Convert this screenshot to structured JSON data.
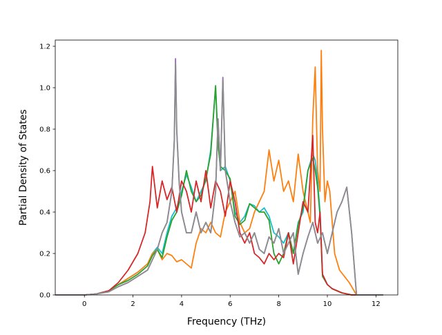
{
  "chart_data": {
    "type": "line",
    "title": "",
    "xlabel": "Frequency (THz)",
    "ylabel": "Partial Density of States",
    "xlim": [
      -1.2,
      12.9
    ],
    "ylim": [
      0,
      1.23
    ],
    "xticks": [
      0,
      2,
      4,
      6,
      8,
      10,
      12
    ],
    "yticks": [
      0.0,
      0.2,
      0.4,
      0.6,
      0.8,
      1.0,
      1.2
    ],
    "xtick_labels": [
      "0",
      "2",
      "4",
      "6",
      "8",
      "10",
      "12"
    ],
    "ytick_labels": [
      "0.0",
      "0.2",
      "0.4",
      "0.6",
      "0.8",
      "1.0",
      "1.2"
    ],
    "grid": false,
    "legend": "none",
    "series": [
      {
        "color": "#17becf",
        "x": [
          -1.2,
          0,
          0.5,
          1.0,
          1.4,
          1.8,
          2.2,
          2.6,
          2.8,
          3.0,
          3.2,
          3.4,
          3.6,
          3.8,
          4.0,
          4.2,
          4.4,
          4.6,
          4.8,
          5.0,
          5.2,
          5.4,
          5.5,
          5.6,
          5.8,
          6.0,
          6.2,
          6.4,
          6.6,
          6.8,
          7.0,
          7.2,
          7.4,
          7.6,
          7.8,
          8.0,
          8.2,
          8.4,
          8.6,
          8.8,
          9.0,
          9.2,
          9.4,
          9.5,
          9.6,
          9.7,
          9.8,
          10.0,
          10.2,
          10.4,
          10.6,
          10.8,
          11.0,
          11.2,
          12.3
        ],
        "y": [
          0,
          0,
          0.005,
          0.02,
          0.05,
          0.08,
          0.11,
          0.15,
          0.2,
          0.23,
          0.2,
          0.3,
          0.38,
          0.42,
          0.5,
          0.58,
          0.52,
          0.45,
          0.5,
          0.55,
          0.7,
          1.0,
          0.75,
          0.6,
          0.62,
          0.55,
          0.4,
          0.35,
          0.38,
          0.44,
          0.43,
          0.4,
          0.42,
          0.38,
          0.3,
          0.28,
          0.25,
          0.3,
          0.2,
          0.35,
          0.4,
          0.6,
          0.68,
          0.65,
          0.55,
          0.4,
          0.1,
          0.05,
          0.03,
          0.02,
          0.01,
          0.005,
          0,
          0,
          0
        ]
      },
      {
        "color": "#ff7f0e",
        "x": [
          -1.2,
          0,
          0.5,
          1.0,
          1.4,
          1.8,
          2.2,
          2.6,
          2.8,
          3.0,
          3.2,
          3.4,
          3.6,
          3.8,
          4.0,
          4.2,
          4.4,
          4.6,
          4.8,
          5.0,
          5.2,
          5.4,
          5.6,
          5.8,
          6.0,
          6.2,
          6.4,
          6.6,
          6.8,
          7.0,
          7.2,
          7.4,
          7.6,
          7.8,
          8.0,
          8.2,
          8.4,
          8.6,
          8.8,
          9.0,
          9.2,
          9.3,
          9.4,
          9.5,
          9.6,
          9.7,
          9.75,
          9.8,
          9.9,
          10.0,
          10.1,
          10.3,
          10.5,
          10.7,
          10.9,
          11.1,
          11.2,
          12.3
        ],
        "y": [
          0,
          0,
          0.005,
          0.02,
          0.05,
          0.08,
          0.11,
          0.15,
          0.2,
          0.22,
          0.17,
          0.2,
          0.19,
          0.16,
          0.17,
          0.15,
          0.13,
          0.25,
          0.32,
          0.3,
          0.35,
          0.3,
          0.28,
          0.4,
          0.45,
          0.5,
          0.35,
          0.3,
          0.32,
          0.4,
          0.45,
          0.5,
          0.7,
          0.55,
          0.65,
          0.5,
          0.55,
          0.45,
          0.68,
          0.5,
          0.4,
          0.35,
          0.85,
          1.1,
          0.6,
          0.5,
          1.18,
          0.8,
          0.45,
          0.55,
          0.5,
          0.2,
          0.12,
          0.09,
          0.06,
          0.02,
          0,
          0
        ]
      },
      {
        "color": "#2ca02c",
        "x": [
          -1.2,
          0,
          0.5,
          1.0,
          1.4,
          1.8,
          2.2,
          2.6,
          2.8,
          3.0,
          3.2,
          3.4,
          3.6,
          3.8,
          4.0,
          4.2,
          4.4,
          4.6,
          4.8,
          5.0,
          5.2,
          5.4,
          5.5,
          5.6,
          5.8,
          6.0,
          6.2,
          6.4,
          6.6,
          6.8,
          7.0,
          7.2,
          7.4,
          7.6,
          7.8,
          8.0,
          8.2,
          8.4,
          8.6,
          8.8,
          9.0,
          9.2,
          9.4,
          9.5,
          9.6,
          9.7,
          9.8,
          10.0,
          10.2,
          10.4,
          10.6,
          10.8,
          11.0,
          11.2,
          12.3
        ],
        "y": [
          0,
          0,
          0.005,
          0.02,
          0.05,
          0.07,
          0.1,
          0.14,
          0.19,
          0.22,
          0.18,
          0.28,
          0.36,
          0.4,
          0.48,
          0.6,
          0.5,
          0.45,
          0.48,
          0.56,
          0.68,
          1.01,
          0.72,
          0.62,
          0.6,
          0.56,
          0.38,
          0.34,
          0.36,
          0.44,
          0.42,
          0.4,
          0.4,
          0.36,
          0.2,
          0.15,
          0.2,
          0.3,
          0.2,
          0.34,
          0.42,
          0.6,
          0.66,
          0.6,
          0.52,
          0.38,
          0.09,
          0.05,
          0.03,
          0.02,
          0.01,
          0.005,
          0,
          0,
          0
        ]
      },
      {
        "color": "#d62728",
        "x": [
          -1.2,
          0,
          0.5,
          1.0,
          1.4,
          1.8,
          2.2,
          2.5,
          2.7,
          2.8,
          3.0,
          3.2,
          3.4,
          3.6,
          3.8,
          4.0,
          4.2,
          4.4,
          4.6,
          4.8,
          5.0,
          5.2,
          5.4,
          5.6,
          5.8,
          6.0,
          6.2,
          6.4,
          6.6,
          6.8,
          7.0,
          7.2,
          7.4,
          7.6,
          7.8,
          8.0,
          8.2,
          8.4,
          8.6,
          8.8,
          9.0,
          9.2,
          9.4,
          9.5,
          9.6,
          9.7,
          9.8,
          10.0,
          10.2,
          10.4,
          10.6,
          10.8,
          11.0,
          11.2,
          12.3
        ],
        "y": [
          0,
          0,
          0.005,
          0.02,
          0.06,
          0.12,
          0.2,
          0.3,
          0.45,
          0.62,
          0.42,
          0.55,
          0.46,
          0.52,
          0.4,
          0.55,
          0.5,
          0.4,
          0.55,
          0.45,
          0.6,
          0.42,
          0.55,
          0.5,
          0.38,
          0.55,
          0.45,
          0.3,
          0.25,
          0.3,
          0.2,
          0.18,
          0.15,
          0.2,
          0.17,
          0.2,
          0.18,
          0.3,
          0.15,
          0.3,
          0.45,
          0.4,
          0.77,
          0.35,
          0.3,
          0.4,
          0.1,
          0.05,
          0.03,
          0.02,
          0.01,
          0.005,
          0,
          0,
          0
        ]
      },
      {
        "color": "#9467bd",
        "x": [
          -1.2,
          0,
          0.5,
          1.0,
          1.4,
          1.8,
          2.2,
          2.6,
          2.8,
          3.0,
          3.2,
          3.4,
          3.6,
          3.7,
          3.75,
          3.8,
          3.9,
          4.0,
          4.2,
          4.4,
          4.6,
          4.8,
          5.0,
          5.2,
          5.4,
          5.5,
          5.6,
          5.7,
          5.8,
          6.0,
          6.2,
          6.4,
          6.6,
          6.8,
          7.0,
          7.2,
          7.4,
          7.6,
          7.8,
          8.0,
          8.2,
          8.4,
          8.6,
          8.8,
          9.0,
          9.2,
          9.4,
          9.6,
          9.8,
          10.0,
          10.2,
          10.4,
          10.6,
          10.8,
          11.0,
          11.1,
          11.2,
          12.3
        ],
        "y": [
          0,
          0,
          0.005,
          0.015,
          0.04,
          0.06,
          0.09,
          0.12,
          0.17,
          0.22,
          0.3,
          0.35,
          0.5,
          0.75,
          1.14,
          0.8,
          0.55,
          0.4,
          0.3,
          0.3,
          0.4,
          0.3,
          0.35,
          0.3,
          0.5,
          0.85,
          0.6,
          1.05,
          0.6,
          0.45,
          0.35,
          0.28,
          0.3,
          0.25,
          0.3,
          0.22,
          0.2,
          0.28,
          0.25,
          0.32,
          0.2,
          0.25,
          0.3,
          0.1,
          0.2,
          0.28,
          0.35,
          0.25,
          0.3,
          0.2,
          0.3,
          0.4,
          0.45,
          0.52,
          0.3,
          0.15,
          0,
          0
        ]
      },
      {
        "color": "#8c8c8c",
        "x": [
          -1.2,
          0,
          0.5,
          1.0,
          1.4,
          1.8,
          2.2,
          2.6,
          2.8,
          3.0,
          3.2,
          3.4,
          3.6,
          3.7,
          3.75,
          3.8,
          3.9,
          4.0,
          4.2,
          4.4,
          4.6,
          4.8,
          5.0,
          5.2,
          5.4,
          5.5,
          5.6,
          5.7,
          5.8,
          6.0,
          6.2,
          6.4,
          6.6,
          6.8,
          7.0,
          7.2,
          7.4,
          7.6,
          7.8,
          8.0,
          8.2,
          8.4,
          8.6,
          8.8,
          9.0,
          9.2,
          9.4,
          9.6,
          9.8,
          10.0,
          10.2,
          10.4,
          10.6,
          10.8,
          11.0,
          11.1,
          11.2,
          12.3
        ],
        "y": [
          0,
          0,
          0.005,
          0.015,
          0.04,
          0.06,
          0.09,
          0.12,
          0.17,
          0.22,
          0.3,
          0.35,
          0.5,
          0.74,
          1.12,
          0.79,
          0.54,
          0.4,
          0.3,
          0.3,
          0.4,
          0.3,
          0.35,
          0.3,
          0.5,
          0.84,
          0.6,
          1.04,
          0.6,
          0.45,
          0.35,
          0.28,
          0.3,
          0.25,
          0.3,
          0.22,
          0.2,
          0.28,
          0.25,
          0.32,
          0.2,
          0.25,
          0.3,
          0.1,
          0.2,
          0.28,
          0.35,
          0.25,
          0.3,
          0.2,
          0.3,
          0.4,
          0.45,
          0.52,
          0.3,
          0.15,
          0,
          0
        ]
      }
    ]
  }
}
